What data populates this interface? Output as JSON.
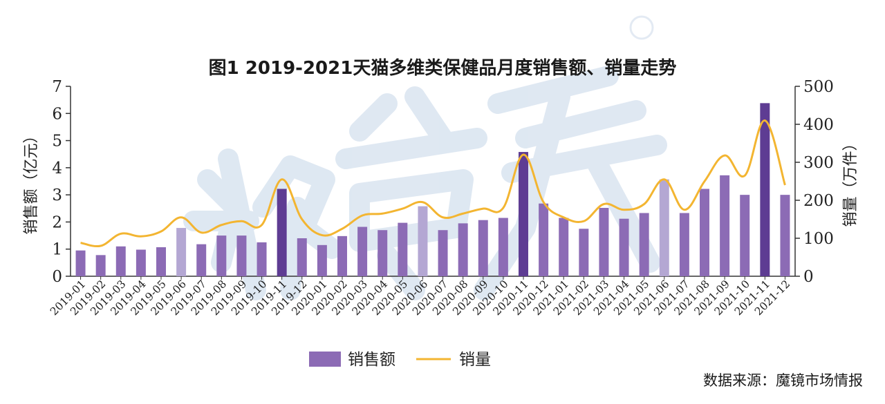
{
  "colors": {
    "bar_normal": "#8C6BB5",
    "bar_highlight": "#5E3C93",
    "bar_light": "#B4A7D3",
    "line": "#F3B531",
    "axis": "#333333",
    "watermark": "#D6E1EE"
  },
  "chart_data": {
    "type": "bar",
    "title": "图1 2019-2021天猫多维类保健品月度销售额、销量走势",
    "categories": [
      "2019-01",
      "2019-02",
      "2019-03",
      "2019-04",
      "2019-05",
      "2019-06",
      "2019-07",
      "2019-08",
      "2019-09",
      "2019-10",
      "2019-11",
      "2019-12",
      "2020-01",
      "2020-02",
      "2020-03",
      "2020-04",
      "2020-05",
      "2020-06",
      "2020-07",
      "2020-08",
      "2020-09",
      "2020-10",
      "2020-11",
      "2020-12",
      "2021-01",
      "2021-02",
      "2021-03",
      "2021-04",
      "2021-05",
      "2021-06",
      "2021-07",
      "2021-08",
      "2021-09",
      "2021-10",
      "2021-11",
      "2021-12"
    ],
    "series": [
      {
        "name": "销售额",
        "kind": "bar",
        "axis": "left",
        "values": [
          0.95,
          0.78,
          1.1,
          0.98,
          1.07,
          1.78,
          1.18,
          1.5,
          1.5,
          1.25,
          3.22,
          1.4,
          1.15,
          1.48,
          1.82,
          1.7,
          1.97,
          2.58,
          1.7,
          1.95,
          2.07,
          2.15,
          4.58,
          2.68,
          2.15,
          1.75,
          2.52,
          2.12,
          2.33,
          3.57,
          2.33,
          3.22,
          3.72,
          3.0,
          6.38,
          3.0
        ],
        "highlight": [
          10,
          22,
          34
        ],
        "light": [
          5,
          17,
          29
        ]
      },
      {
        "name": "销量",
        "kind": "line",
        "axis": "right",
        "values": [
          88,
          80,
          112,
          105,
          118,
          155,
          115,
          135,
          145,
          135,
          255,
          150,
          108,
          125,
          160,
          165,
          178,
          195,
          155,
          165,
          178,
          180,
          320,
          195,
          155,
          145,
          190,
          175,
          190,
          255,
          175,
          250,
          318,
          265,
          410,
          240
        ]
      }
    ],
    "ylabel": "销售额（亿元）",
    "y2label": "销量（万件）",
    "ylim": [
      0,
      7
    ],
    "y2lim": [
      0,
      500
    ],
    "yticks": [
      "0",
      "1",
      "2",
      "3",
      "4",
      "5",
      "6",
      "7"
    ],
    "y2ticks": [
      "0",
      "100",
      "200",
      "300",
      "400",
      "500"
    ],
    "legend": [
      {
        "label": "销售额",
        "kind": "bar"
      },
      {
        "label": "销量",
        "kind": "line"
      }
    ],
    "legend_position": "bottom",
    "source": "数据来源：魔镜市场情报",
    "grid": false
  }
}
